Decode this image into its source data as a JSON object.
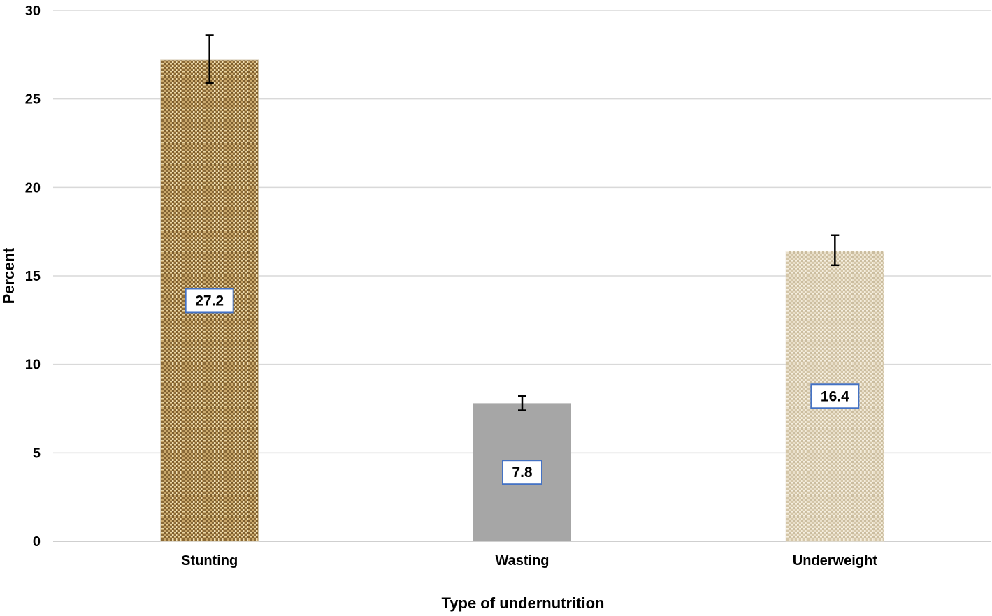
{
  "chart_data": {
    "type": "bar",
    "title": "",
    "xlabel": "Type of undernutrition",
    "ylabel": "Percent",
    "ylim": [
      0,
      30
    ],
    "yticks": [
      0,
      5,
      10,
      15,
      20,
      25,
      30
    ],
    "grid": true,
    "legend": "none",
    "categories": [
      "Stunting",
      "Wasting",
      "Underweight"
    ],
    "values": [
      27.2,
      7.8,
      16.4
    ],
    "data_labels": [
      "27.2",
      "7.8",
      "16.4"
    ],
    "error_bars": [
      {
        "low": 25.9,
        "high": 28.6
      },
      {
        "low": 7.4,
        "high": 8.2
      },
      {
        "low": 15.6,
        "high": 17.3
      }
    ],
    "colors": [
      "#a8864f",
      "#a6a6a6",
      "#e3d7bf"
    ]
  }
}
